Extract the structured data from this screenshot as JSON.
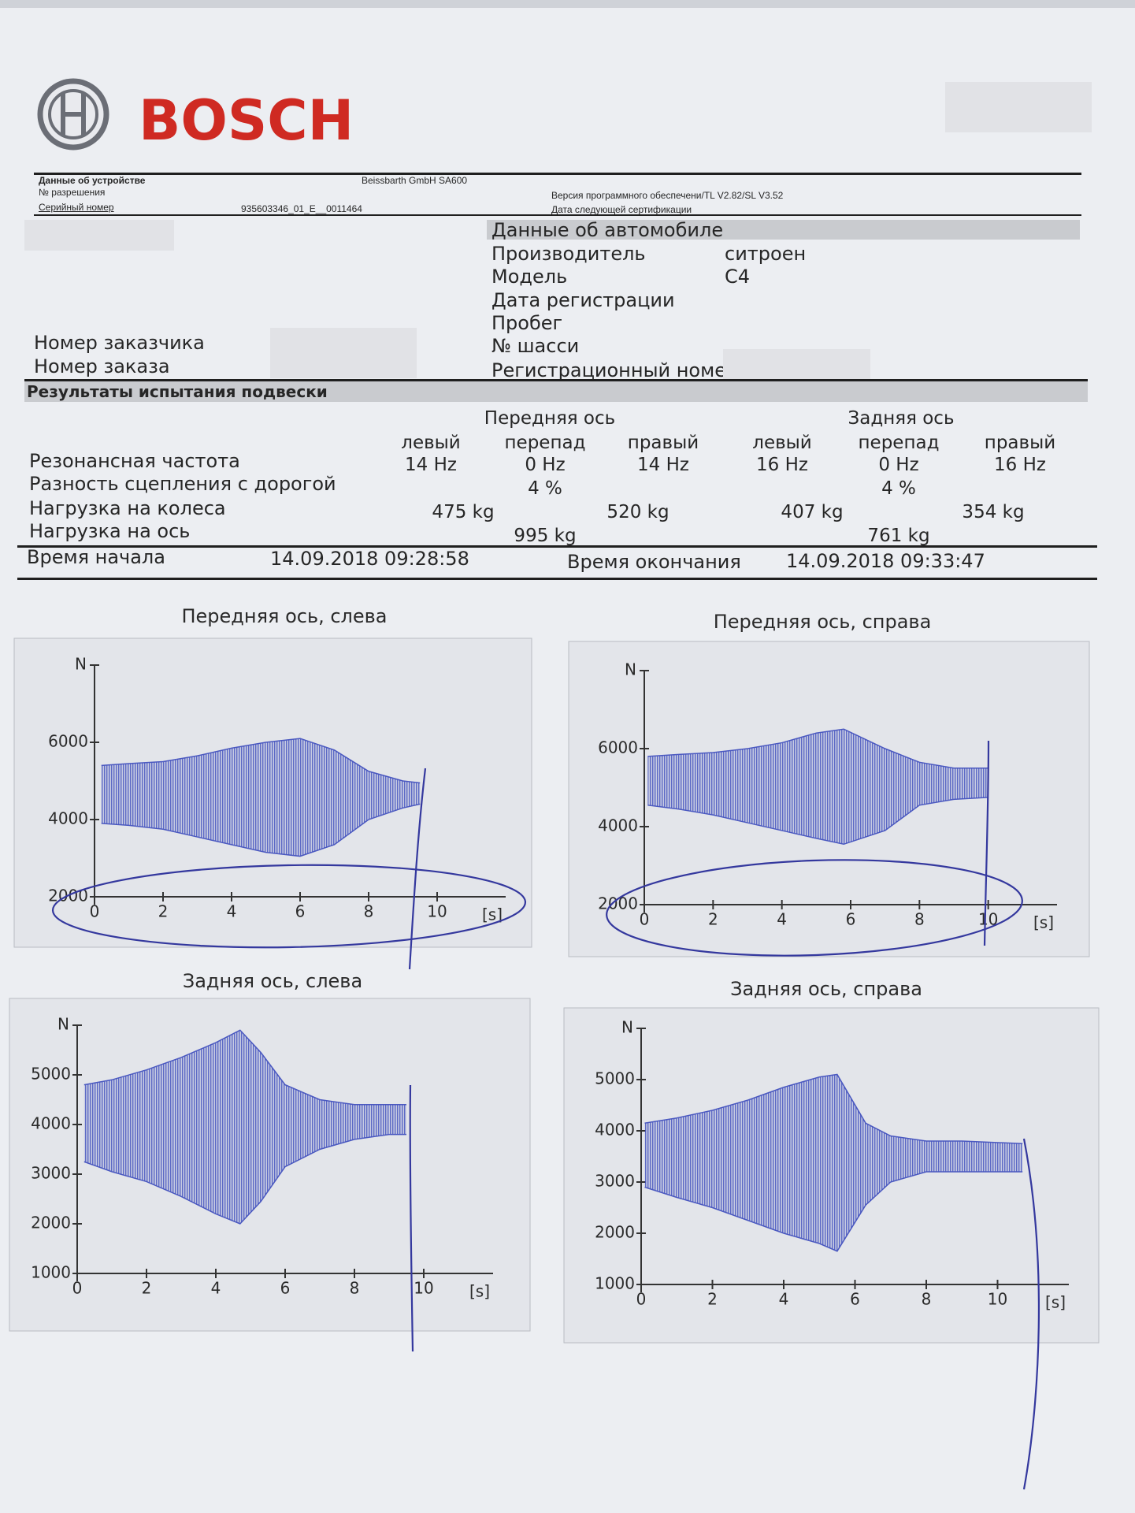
{
  "header": {
    "logo": "BOSCH"
  },
  "device": {
    "labels": [
      "Данные об устройстве",
      "№ разрешения",
      "Серийный номер"
    ],
    "maker": "Beissbarth GmbH SA600",
    "serial": "935603346_01_E__0011464",
    "software": "Версия программного обеспечени/TL V2.82/SL V3.52",
    "certification": "Дата следующей сертификации"
  },
  "vehicle": {
    "title": "Данные об автомобиле",
    "fields": [
      {
        "label": "Производитель",
        "value": "ситроен"
      },
      {
        "label": "Модель",
        "value": "C4"
      },
      {
        "label": "Дата регистрации"
      },
      {
        "label": "Пробег"
      },
      {
        "label": "№ шасси"
      },
      {
        "label": "Регистрационный номе"
      }
    ]
  },
  "customer": {
    "labels": [
      "Номер заказчика",
      "Номер заказа"
    ]
  },
  "results": {
    "title": "Результаты испытания подвески",
    "axes": [
      "Передняя ось",
      "Задняя ось"
    ],
    "columns": [
      "левый",
      "перепад",
      "правый",
      "левый",
      "перепад",
      "правый"
    ],
    "rows": [
      {
        "label": "Резонансная частота",
        "values": [
          "14 Hz",
          "0 Hz",
          "14 Hz",
          "16 Hz",
          "0 Hz",
          "16 Hz"
        ]
      },
      {
        "label": "Разность сцепления с дорогой",
        "values": [
          "4 %",
          "4 %"
        ]
      },
      {
        "label": "Нагрузка на колеса",
        "values": [
          "475 kg",
          "520 kg",
          "407 kg",
          "354 kg"
        ]
      },
      {
        "label": "Нагрузка на ось",
        "values": [
          "995 kg",
          "761 kg"
        ]
      }
    ],
    "start_label": "Время начала",
    "start": "14.09.2018 09:28:58",
    "end_label": "Время окончания",
    "end": "14.09.2018 09:33:47"
  },
  "chart_data": [
    {
      "type": "range-area",
      "title": "Передняя ось, слева",
      "xlabel": "[s]",
      "ylabel": "N",
      "color": "#4a58c0",
      "x": [
        0.2,
        1,
        2,
        3,
        4,
        5,
        6,
        7,
        8,
        9,
        9.5
      ],
      "high": [
        5400,
        5450,
        5500,
        5650,
        5850,
        6000,
        6100,
        5800,
        5250,
        5000,
        4950
      ],
      "low": [
        3900,
        3850,
        3750,
        3550,
        3350,
        3150,
        3050,
        3350,
        4000,
        4300,
        4400
      ],
      "xlim": [
        0,
        12
      ],
      "ylim": [
        2000,
        8000
      ],
      "xticks": [
        0,
        2,
        4,
        6,
        8,
        10
      ],
      "yticks": [
        2000,
        4000,
        6000
      ]
    },
    {
      "type": "range-area",
      "title": "Передняя ось, справа",
      "xlabel": "[s]",
      "ylabel": "N",
      "color": "#4a58c0",
      "x": [
        0.1,
        1,
        2,
        3,
        4,
        5,
        5.8,
        7,
        8,
        9,
        10
      ],
      "high": [
        5800,
        5850,
        5900,
        6000,
        6150,
        6400,
        6500,
        6000,
        5650,
        5500,
        5500
      ],
      "low": [
        4550,
        4450,
        4300,
        4100,
        3900,
        3700,
        3550,
        3900,
        4550,
        4700,
        4750
      ],
      "xlim": [
        0,
        12
      ],
      "ylim": [
        2000,
        8000
      ],
      "xticks": [
        0,
        2,
        4,
        6,
        8,
        10
      ],
      "yticks": [
        2000,
        4000,
        6000
      ]
    },
    {
      "type": "range-area",
      "title": "Задняя ось, слева",
      "xlabel": "[s]",
      "ylabel": "N",
      "color": "#4a58c0",
      "x": [
        0.2,
        1,
        2,
        3,
        4,
        4.7,
        5.3,
        6,
        7,
        8,
        9,
        9.5
      ],
      "high": [
        4800,
        4900,
        5100,
        5350,
        5650,
        5900,
        5450,
        4800,
        4500,
        4400,
        4400,
        4400
      ],
      "low": [
        3250,
        3050,
        2850,
        2550,
        2200,
        2000,
        2450,
        3150,
        3500,
        3700,
        3800,
        3800
      ],
      "xlim": [
        0,
        12
      ],
      "ylim": [
        1000,
        6000
      ],
      "xticks": [
        0,
        2,
        4,
        6,
        8,
        10
      ],
      "yticks": [
        1000,
        2000,
        3000,
        4000,
        5000
      ]
    },
    {
      "type": "range-area",
      "title": "Задняя ось, справа",
      "xlabel": "[s]",
      "ylabel": "N",
      "color": "#4a58c0",
      "x": [
        0.1,
        1,
        2,
        3,
        4,
        5,
        5.5,
        6.3,
        7,
        8,
        9,
        10.7
      ],
      "high": [
        4150,
        4250,
        4400,
        4600,
        4850,
        5050,
        5100,
        4150,
        3900,
        3800,
        3800,
        3750
      ],
      "low": [
        2900,
        2700,
        2500,
        2250,
        2000,
        1800,
        1650,
        2550,
        3000,
        3200,
        3200,
        3200
      ],
      "xlim": [
        0,
        12
      ],
      "ylim": [
        1000,
        6000
      ],
      "xticks": [
        0,
        2,
        4,
        6,
        8,
        10
      ],
      "yticks": [
        1000,
        2000,
        3000,
        4000,
        5000
      ]
    }
  ]
}
